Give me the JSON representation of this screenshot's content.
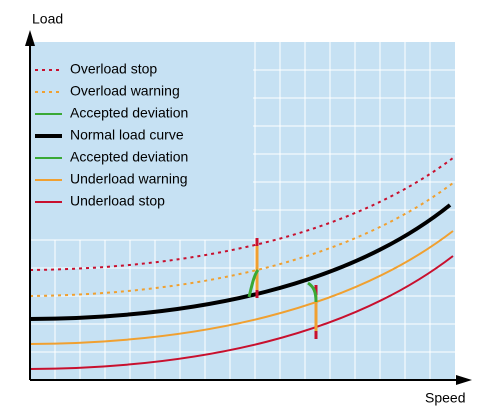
{
  "axes": {
    "y_label": "Load",
    "x_label": "Speed"
  },
  "legend": [
    {
      "label": "Overload stop"
    },
    {
      "label": "Overload warning"
    },
    {
      "label": "Accepted deviation"
    },
    {
      "label": "Normal load curve"
    },
    {
      "label": "Accepted deviation"
    },
    {
      "label": "Underload warning"
    },
    {
      "label": "Underload stop"
    }
  ]
}
